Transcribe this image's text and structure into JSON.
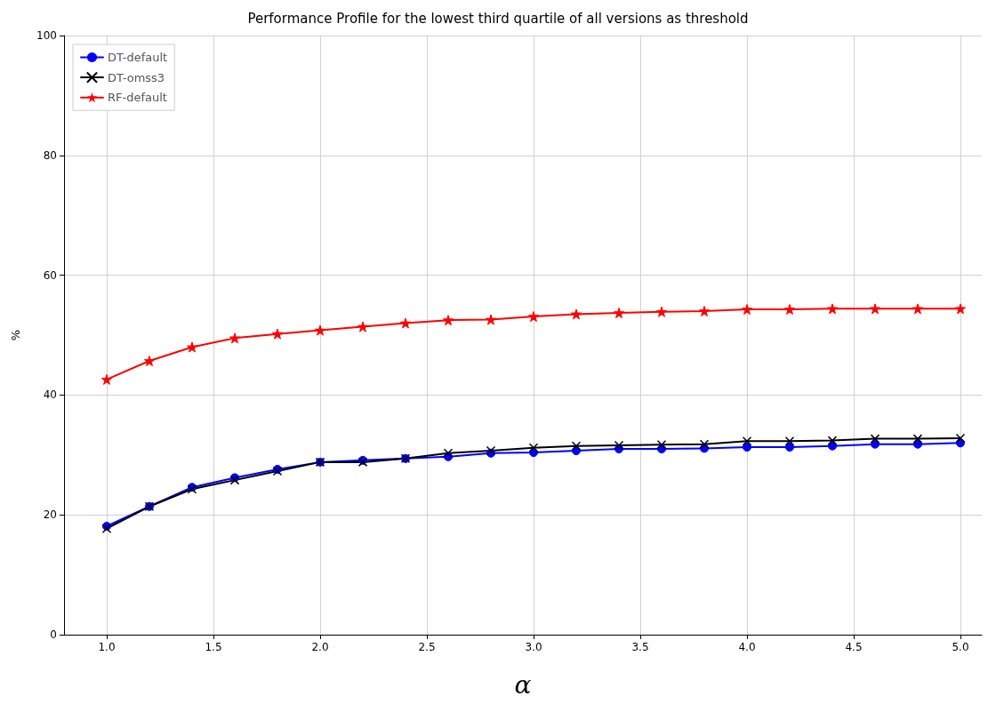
{
  "chart_data": {
    "type": "line",
    "title": "Performance Profile for the lowest third quartile of all versions as threshold",
    "xlabel": "α",
    "ylabel": "%",
    "x": [
      1.0,
      1.2,
      1.4,
      1.6,
      1.8,
      2.0,
      2.2,
      2.4,
      2.6,
      2.8,
      3.0,
      3.2,
      3.4,
      3.6,
      3.8,
      4.0,
      4.2,
      4.4,
      4.6,
      4.8,
      5.0
    ],
    "series": [
      {
        "name": "DT-default",
        "color": "#0000ff",
        "marker": "circle",
        "values": [
          18.1,
          21.4,
          24.6,
          26.2,
          27.6,
          28.8,
          29.1,
          29.4,
          29.7,
          30.3,
          30.4,
          30.7,
          31.0,
          31.0,
          31.1,
          31.3,
          31.3,
          31.5,
          31.8,
          31.8,
          32.0
        ]
      },
      {
        "name": "DT-omss3",
        "color": "#000000",
        "marker": "cross",
        "values": [
          17.7,
          21.4,
          24.3,
          25.8,
          27.3,
          28.8,
          28.8,
          29.4,
          30.3,
          30.7,
          31.2,
          31.5,
          31.6,
          31.7,
          31.8,
          32.3,
          32.3,
          32.4,
          32.7,
          32.7,
          32.8
        ]
      },
      {
        "name": "RF-default",
        "color": "#ff0000",
        "marker": "star",
        "values": [
          42.6,
          45.7,
          48.0,
          49.5,
          50.2,
          50.8,
          51.4,
          52.0,
          52.5,
          52.6,
          53.1,
          53.5,
          53.7,
          53.9,
          54.0,
          54.3,
          54.3,
          54.4,
          54.4,
          54.4,
          54.4
        ]
      }
    ],
    "xlim": [
      0.8,
      5.1
    ],
    "xticks": [
      {
        "value": 1.0,
        "label": "1.0"
      },
      {
        "value": 1.5,
        "label": "1.5"
      },
      {
        "value": 2.0,
        "label": "2.0"
      },
      {
        "value": 2.5,
        "label": "2.5"
      },
      {
        "value": 3.0,
        "label": "3.0"
      },
      {
        "value": 3.5,
        "label": "3.5"
      },
      {
        "value": 4.0,
        "label": "4.0"
      },
      {
        "value": 4.5,
        "label": "4.5"
      },
      {
        "value": 5.0,
        "label": "5.0"
      }
    ],
    "ylim": [
      0,
      100
    ],
    "yticks": [
      0,
      20,
      40,
      60,
      80,
      100
    ],
    "grid": true,
    "legend": "top left",
    "line_style": "solid"
  }
}
